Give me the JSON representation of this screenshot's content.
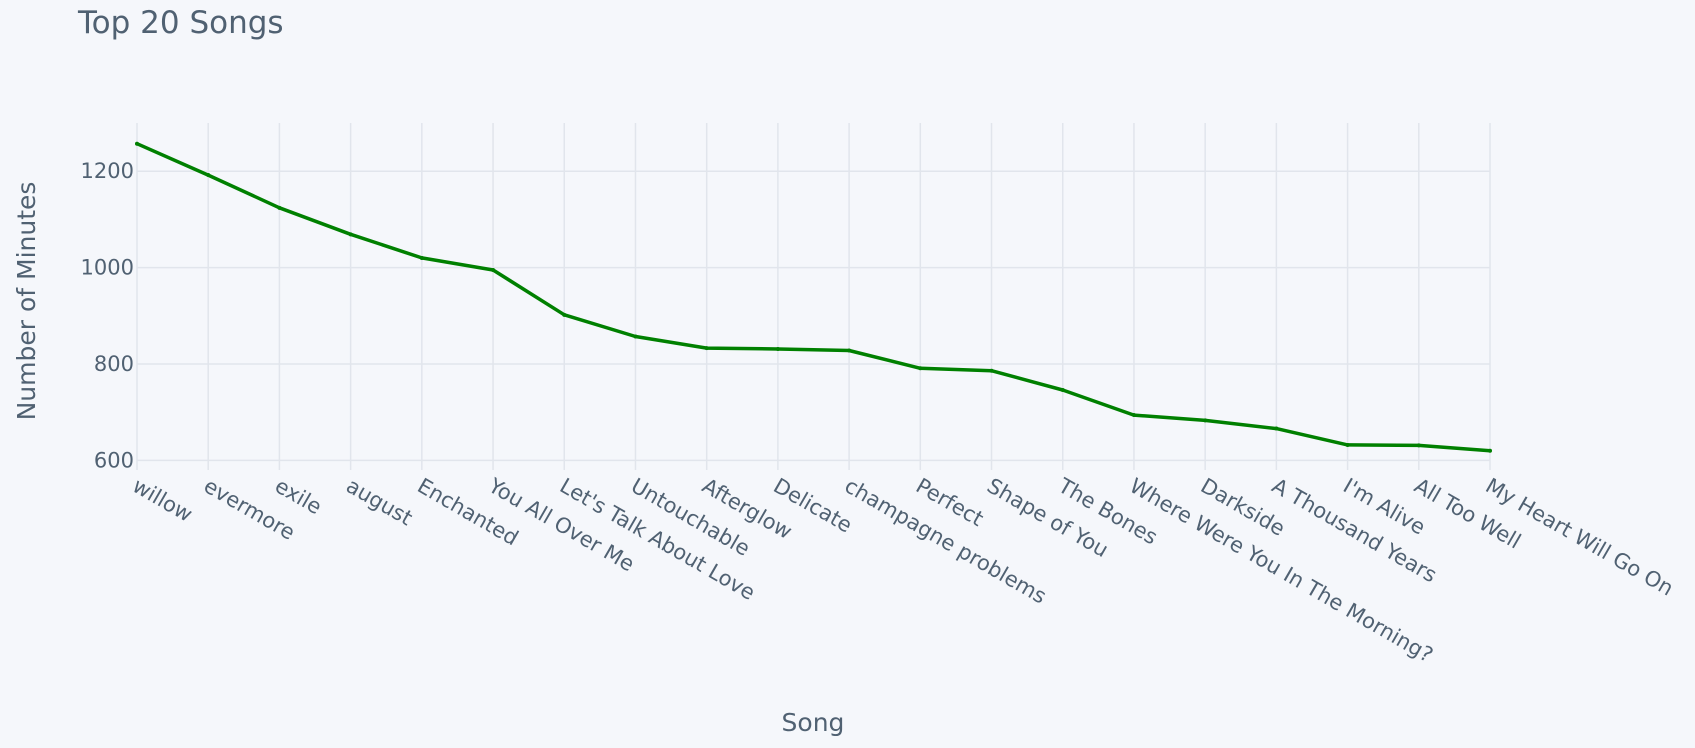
{
  "chart_data": {
    "type": "line",
    "title": "Top 20 Songs",
    "xlabel": "Song",
    "ylabel": "Number of Minutes",
    "categories": [
      "willow",
      "evermore",
      "exile",
      "august",
      "Enchanted",
      "You All Over Me",
      "Let's Talk About Love",
      "Untouchable",
      "Afterglow",
      "Delicate",
      "champagne problems",
      "Perfect",
      "Shape of You",
      "The Bones",
      "Where Were You In The Morning?",
      "Darkside",
      "A Thousand Years",
      "I'm Alive",
      "All Too Well",
      "My Heart Will Go On"
    ],
    "values": [
      1257,
      1192,
      1124,
      1069,
      1020,
      995,
      902,
      857,
      833,
      831,
      828,
      791,
      786,
      746,
      694,
      683,
      666,
      632,
      631,
      620
    ],
    "y_ticks": [
      600,
      800,
      1000,
      1200
    ],
    "ylim": [
      580,
      1300
    ],
    "grid": true,
    "line_color": "#008000"
  }
}
